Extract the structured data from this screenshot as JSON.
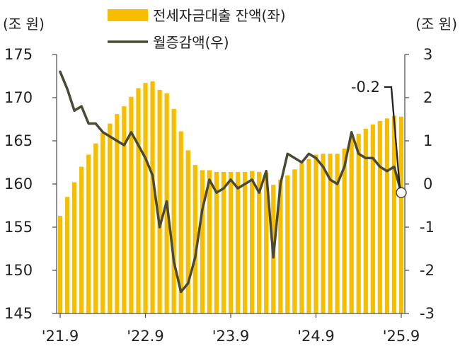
{
  "chart_data": {
    "type": "bar+line",
    "y_left": {
      "unit_label": "(조 원)",
      "min": 145,
      "max": 175,
      "ticks": [
        145,
        150,
        155,
        160,
        165,
        170,
        175
      ]
    },
    "y_right": {
      "unit_label": "(조 원)",
      "min": -3,
      "max": 3,
      "ticks": [
        -3,
        -2,
        -1,
        0,
        1,
        2,
        3
      ],
      "tick_labels": [
        "-3",
        "-2",
        "-1",
        "0",
        "1",
        "2",
        "3"
      ]
    },
    "x_tick_labels": [
      "'21.9",
      "'22.9",
      "'23.9",
      "'24.9",
      "'25.9"
    ],
    "series": [
      {
        "name": "전세자금대출 잔액(좌)",
        "type": "bar",
        "axis": "left",
        "color": "#F5BE00",
        "values": [
          156.3,
          158.5,
          160.2,
          162.0,
          163.4,
          164.7,
          165.9,
          167.0,
          168.1,
          169.0,
          170.1,
          171.1,
          171.7,
          171.9,
          170.9,
          170.5,
          168.7,
          166.1,
          163.9,
          162.2,
          161.6,
          161.6,
          161.4,
          161.4,
          161.4,
          161.4,
          161.4,
          161.5,
          161.4,
          161.3,
          159.9,
          160.5,
          161.0,
          161.7,
          162.4,
          162.9,
          163.4,
          163.5,
          163.5,
          163.5,
          164.1,
          165.4,
          165.8,
          166.4,
          166.9,
          167.3,
          167.6,
          167.9,
          167.8
        ]
      },
      {
        "name": "월증감액(우)",
        "type": "line",
        "axis": "right",
        "color": "#4A4A33",
        "values": [
          2.6,
          2.2,
          1.7,
          1.8,
          1.4,
          1.4,
          1.2,
          1.1,
          1.0,
          0.9,
          1.2,
          0.9,
          0.6,
          0.2,
          -1.0,
          -0.4,
          -1.8,
          -2.5,
          -2.3,
          -1.7,
          -0.6,
          0.1,
          -0.2,
          -0.1,
          0.1,
          -0.1,
          0.0,
          0.1,
          -0.2,
          0.3,
          -1.7,
          0.0,
          0.7,
          0.6,
          0.5,
          0.7,
          0.6,
          0.4,
          0.1,
          0.0,
          0.4,
          1.2,
          0.7,
          0.6,
          0.6,
          0.4,
          0.3,
          0.4,
          -0.2
        ]
      }
    ],
    "annotation": {
      "text": "-0.2",
      "value": -0.2
    }
  }
}
